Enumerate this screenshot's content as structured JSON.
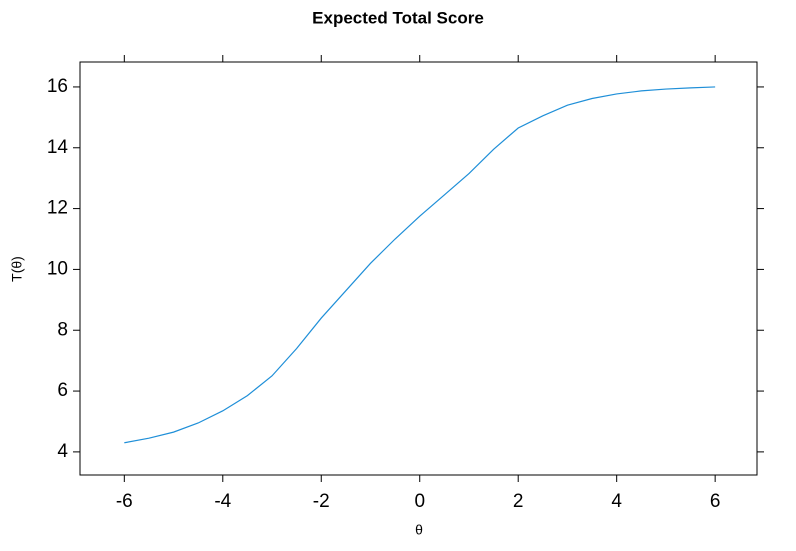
{
  "chart_data": {
    "type": "line",
    "title": "Expected Total Score",
    "x_label": "θ",
    "y_label": "T(θ)",
    "x": [
      -6,
      -5.5,
      -5,
      -4.5,
      -4,
      -3.5,
      -3,
      -2.5,
      -2,
      -1.5,
      -1,
      -0.5,
      0,
      0.5,
      1,
      1.5,
      2,
      2.5,
      3,
      3.5,
      4,
      4.5,
      5,
      5.5,
      6
    ],
    "series": [
      {
        "name": "T(θ)",
        "color": "#1f8fd8",
        "values": [
          4.3,
          4.45,
          4.65,
          4.95,
          5.35,
          5.85,
          6.5,
          7.4,
          8.4,
          9.3,
          10.2,
          11.0,
          11.75,
          12.45,
          13.15,
          13.95,
          14.65,
          15.05,
          15.4,
          15.62,
          15.77,
          15.87,
          15.93,
          15.97,
          16.0
        ]
      }
    ],
    "xlim": [
      -6.9,
      6.85
    ],
    "ylim": [
      3.24,
      16.82
    ],
    "xticks": [
      -6,
      -4,
      -2,
      0,
      2,
      4,
      6
    ],
    "yticks": [
      4,
      6,
      8,
      10,
      12,
      14,
      16
    ]
  }
}
